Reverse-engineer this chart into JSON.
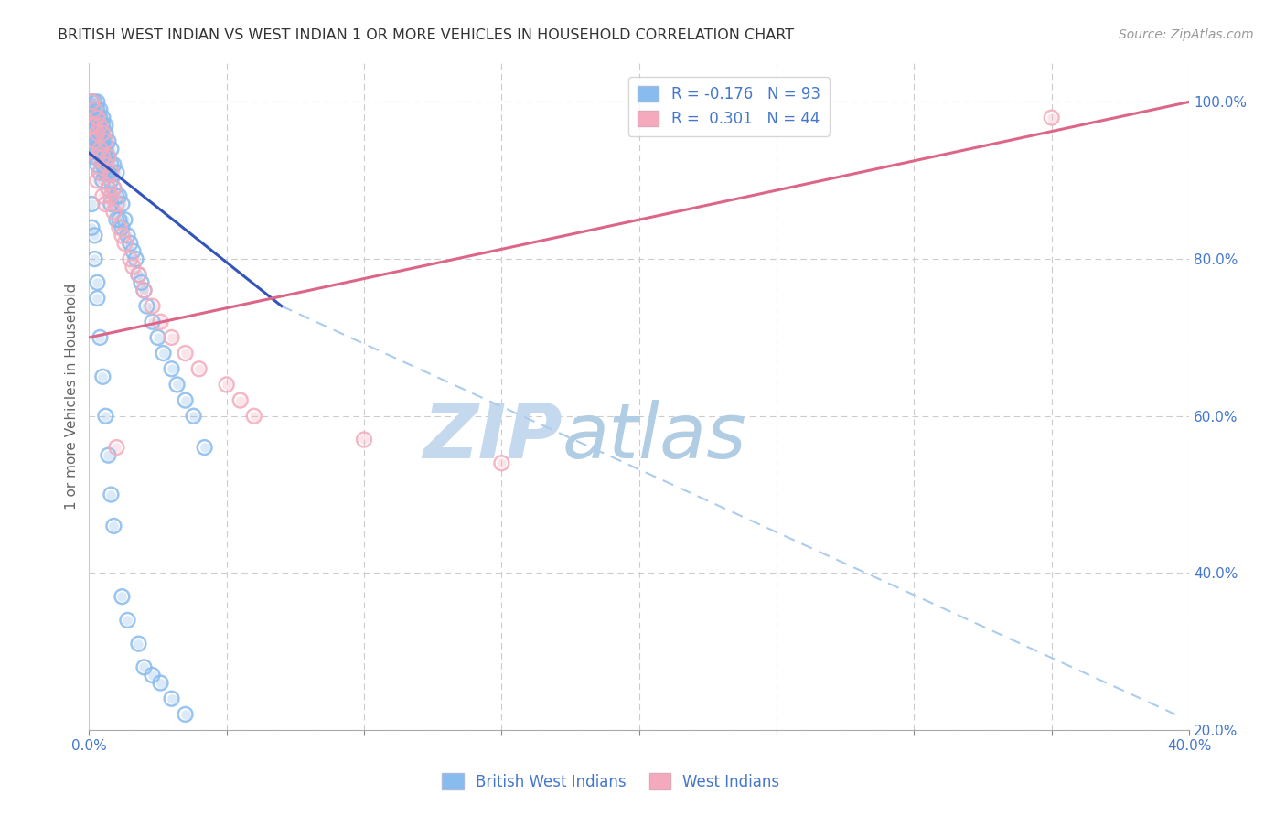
{
  "title": "BRITISH WEST INDIAN VS WEST INDIAN 1 OR MORE VEHICLES IN HOUSEHOLD CORRELATION CHART",
  "source": "Source: ZipAtlas.com",
  "ylabel": "1 or more Vehicles in Household",
  "xlim": [
    0.0,
    0.4
  ],
  "ylim": [
    0.2,
    1.05
  ],
  "legend_r1": "R = -0.176   N = 93",
  "legend_r2": "R =  0.301   N = 44",
  "blue_scatter_color": "#88BBEE",
  "pink_scatter_color": "#F4AABC",
  "blue_line_color": "#3355BB",
  "pink_line_color": "#DD6688",
  "dashed_line_color": "#AACCEE",
  "watermark_zip_color": "#C8DCF0",
  "watermark_atlas_color": "#B0D0E8",
  "background_color": "#FFFFFF",
  "grid_color": "#CCCCCC",
  "tick_color": "#4477CC",
  "ylabel_color": "#666666",
  "title_color": "#333333",
  "source_color": "#999999",
  "blue_line_x": [
    0.0,
    0.07
  ],
  "blue_line_y": [
    0.935,
    0.74
  ],
  "dashed_line_x": [
    0.07,
    0.395
  ],
  "dashed_line_y": [
    0.74,
    0.22
  ],
  "pink_line_x": [
    0.0,
    0.4
  ],
  "pink_line_y": [
    0.7,
    1.0
  ],
  "ytick_positions": [
    0.2,
    0.4,
    0.6,
    0.8,
    1.0
  ],
  "ytick_labels": [
    "20.0%",
    "40.0%",
    "60.0%",
    "80.0%",
    "100.0%"
  ],
  "xtick_positions": [
    0.0,
    0.05,
    0.1,
    0.15,
    0.2,
    0.25,
    0.3,
    0.35,
    0.4
  ],
  "xtick_labels": [
    "0.0%",
    "",
    "",
    "",
    "",
    "",
    "",
    "",
    "40.0%"
  ],
  "blue_x": [
    0.001,
    0.001,
    0.001,
    0.001,
    0.002,
    0.002,
    0.002,
    0.002,
    0.002,
    0.002,
    0.002,
    0.002,
    0.003,
    0.003,
    0.003,
    0.003,
    0.003,
    0.003,
    0.003,
    0.003,
    0.003,
    0.004,
    0.004,
    0.004,
    0.004,
    0.004,
    0.004,
    0.004,
    0.005,
    0.005,
    0.005,
    0.005,
    0.005,
    0.005,
    0.006,
    0.006,
    0.006,
    0.006,
    0.006,
    0.007,
    0.007,
    0.007,
    0.007,
    0.008,
    0.008,
    0.008,
    0.008,
    0.009,
    0.009,
    0.01,
    0.01,
    0.01,
    0.011,
    0.011,
    0.012,
    0.012,
    0.013,
    0.014,
    0.015,
    0.016,
    0.017,
    0.018,
    0.019,
    0.02,
    0.021,
    0.023,
    0.025,
    0.027,
    0.03,
    0.032,
    0.035,
    0.038,
    0.042,
    0.001,
    0.001,
    0.002,
    0.002,
    0.003,
    0.003,
    0.004,
    0.005,
    0.006,
    0.007,
    0.008,
    0.009,
    0.012,
    0.014,
    0.018,
    0.02,
    0.023,
    0.026,
    0.03,
    0.035
  ],
  "blue_y": [
    1.0,
    1.0,
    0.99,
    0.98,
    1.0,
    0.99,
    0.98,
    0.97,
    0.96,
    0.95,
    0.94,
    0.93,
    1.0,
    0.99,
    0.98,
    0.97,
    0.96,
    0.95,
    0.94,
    0.93,
    0.92,
    0.99,
    0.98,
    0.97,
    0.96,
    0.95,
    0.94,
    0.91,
    0.98,
    0.97,
    0.95,
    0.94,
    0.92,
    0.9,
    0.97,
    0.96,
    0.94,
    0.93,
    0.91,
    0.95,
    0.93,
    0.91,
    0.89,
    0.94,
    0.92,
    0.9,
    0.87,
    0.92,
    0.89,
    0.91,
    0.88,
    0.85,
    0.88,
    0.85,
    0.87,
    0.84,
    0.85,
    0.83,
    0.82,
    0.81,
    0.8,
    0.78,
    0.77,
    0.76,
    0.74,
    0.72,
    0.7,
    0.68,
    0.66,
    0.64,
    0.62,
    0.6,
    0.56,
    0.87,
    0.84,
    0.83,
    0.8,
    0.77,
    0.75,
    0.7,
    0.65,
    0.6,
    0.55,
    0.5,
    0.46,
    0.37,
    0.34,
    0.31,
    0.28,
    0.27,
    0.26,
    0.24,
    0.22
  ],
  "pink_x": [
    0.001,
    0.001,
    0.002,
    0.002,
    0.002,
    0.003,
    0.003,
    0.003,
    0.003,
    0.004,
    0.004,
    0.004,
    0.005,
    0.005,
    0.005,
    0.006,
    0.006,
    0.006,
    0.007,
    0.007,
    0.008,
    0.008,
    0.009,
    0.009,
    0.01,
    0.011,
    0.012,
    0.013,
    0.015,
    0.016,
    0.018,
    0.02,
    0.023,
    0.026,
    0.03,
    0.035,
    0.04,
    0.05,
    0.055,
    0.06,
    0.1,
    0.15,
    0.35,
    0.01
  ],
  "pink_y": [
    1.0,
    0.97,
    0.99,
    0.97,
    0.95,
    0.98,
    0.96,
    0.93,
    0.9,
    0.97,
    0.94,
    0.91,
    0.96,
    0.93,
    0.88,
    0.95,
    0.92,
    0.87,
    0.93,
    0.89,
    0.91,
    0.88,
    0.89,
    0.86,
    0.87,
    0.84,
    0.83,
    0.82,
    0.8,
    0.79,
    0.78,
    0.76,
    0.74,
    0.72,
    0.7,
    0.68,
    0.66,
    0.64,
    0.62,
    0.6,
    0.57,
    0.54,
    0.98,
    0.56
  ]
}
